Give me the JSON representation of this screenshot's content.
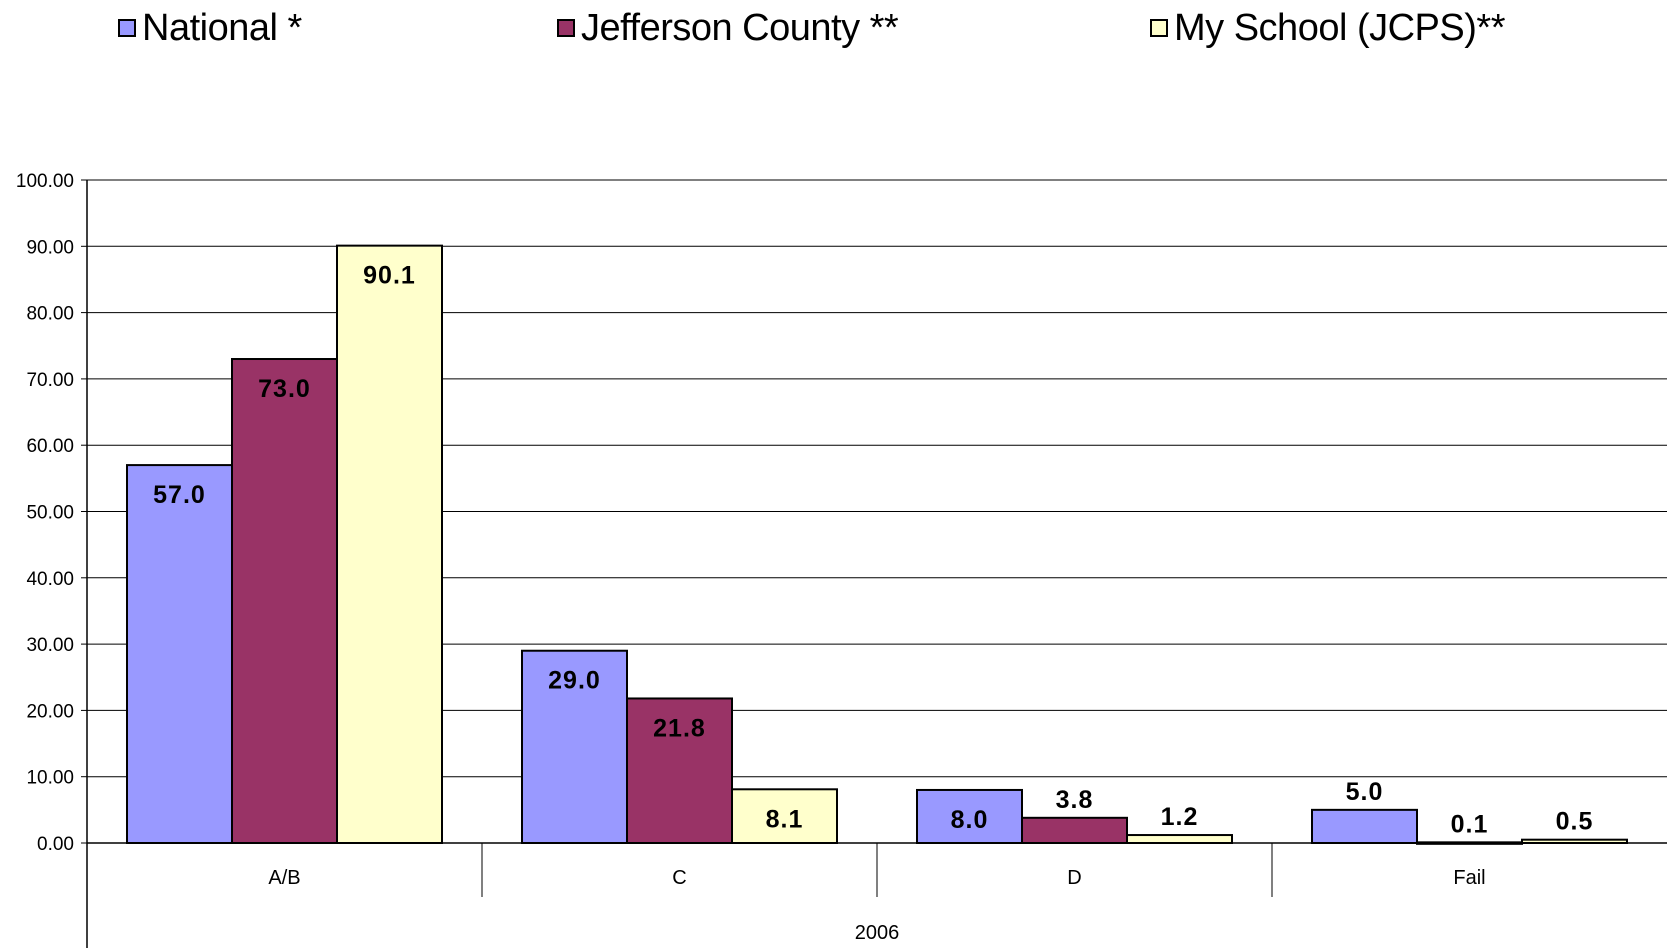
{
  "chart_data": {
    "type": "bar",
    "title": "",
    "xlabel": "",
    "ylabel": "",
    "group_label": "2006",
    "categories": [
      "A/B",
      "C",
      "D",
      "Fail"
    ],
    "series": [
      {
        "name": "National *",
        "color": "#9999ff",
        "values": [
          57.0,
          29.0,
          8.0,
          5.0
        ],
        "labels": [
          "57.0",
          "29.0",
          "8.0",
          "5.0"
        ]
      },
      {
        "name": "Jefferson County **",
        "color": "#993366",
        "values": [
          73.0,
          21.8,
          3.8,
          0.1
        ],
        "labels": [
          "73.0",
          "21.8",
          "3.8",
          "0.1"
        ]
      },
      {
        "name": "My School (JCPS)**",
        "color": "#ffffcc",
        "values": [
          90.1,
          8.1,
          1.2,
          0.5
        ],
        "labels": [
          "90.1",
          "8.1",
          "1.2",
          "0.5"
        ]
      }
    ],
    "ylim": [
      0,
      100
    ],
    "yticks": [
      "0.00",
      "10.00",
      "20.00",
      "30.00",
      "40.00",
      "50.00",
      "60.00",
      "70.00",
      "80.00",
      "90.00",
      "100.00"
    ],
    "grid": true,
    "legend_position": "top"
  }
}
